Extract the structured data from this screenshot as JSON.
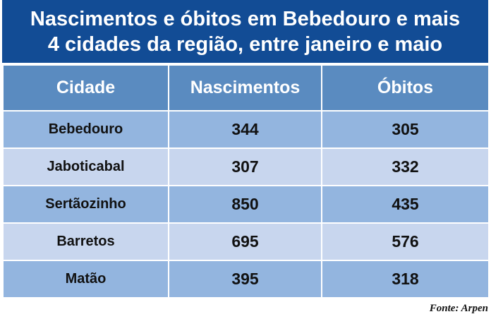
{
  "header": {
    "title_lines": [
      "Nascimentos e óbitos em Bebedouro e mais",
      "4 cidades da região, entre janeiro e maio"
    ]
  },
  "table": {
    "columns": [
      "Cidade",
      "Nascimentos",
      "Óbitos"
    ],
    "rows": [
      [
        "Bebedouro",
        344,
        305
      ],
      [
        "Jaboticabal",
        307,
        332
      ],
      [
        "Sertãozinho",
        850,
        435
      ],
      [
        "Barretos",
        695,
        576
      ],
      [
        "Matão",
        395,
        318
      ]
    ]
  },
  "footer": {
    "source": "Fonte: Arpen"
  }
}
